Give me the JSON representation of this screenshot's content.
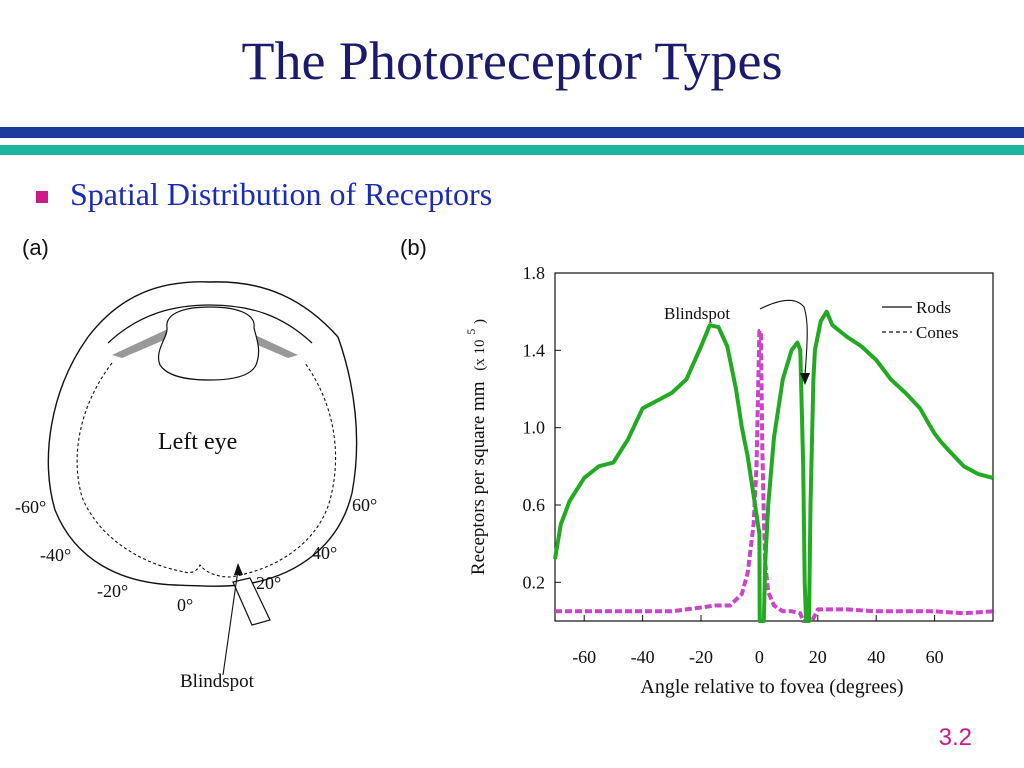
{
  "title": "The Photoreceptor Types",
  "bullet": "Spatial Distribution of Receptors",
  "page_number": "3.2",
  "colors": {
    "title": "#1a1a6e",
    "bullet_text": "#1a2bb8",
    "bullet_marker": "#cc1a8a",
    "bar_blue": "#1a3a9c",
    "bar_teal": "#1eb59e",
    "rods": "#22aa22",
    "cones": "#cc44cc"
  },
  "panel_a": {
    "label": "(a)",
    "eye_label": "Left eye",
    "blindspot_label": "Blindspot",
    "angle_labels": {
      "m60": "-60°",
      "m40": "-40°",
      "m20": "-20°",
      "z0": "0°",
      "p20": "20°",
      "p40": "40°",
      "p60": "60°"
    }
  },
  "panel_b": {
    "label": "(b)",
    "blindspot_label": "Blindspot"
  },
  "chart_data": {
    "type": "line",
    "title": "",
    "xlabel": "Angle relative to fovea (degrees)",
    "ylabel_main": "Receptors per square mm",
    "ylabel_unit_prefix": "(x 10",
    "ylabel_unit_exp": "5",
    "ylabel_unit_suffix": ")",
    "xlim": [
      -70,
      80
    ],
    "ylim": [
      0,
      1.8
    ],
    "x_ticks": [
      -60,
      -40,
      -20,
      0,
      20,
      40,
      60
    ],
    "x_tick_labels": [
      "-60",
      "-40",
      "-20",
      "0",
      "20",
      "40",
      "60"
    ],
    "y_ticks": [
      0.2,
      0.6,
      1.0,
      1.4,
      1.8
    ],
    "y_tick_labels": [
      "0.2",
      "0.6",
      "1.0",
      "1.4",
      "1.8"
    ],
    "legend_placement": "top-right",
    "grid": false,
    "series": [
      {
        "name": "Rods",
        "style": "solid",
        "x": [
          -70,
          -68,
          -65,
          -60,
          -55,
          -50,
          -45,
          -40,
          -35,
          -30,
          -25,
          -20,
          -17,
          -14,
          -11,
          -8,
          -6,
          -4,
          -2,
          0,
          0.1,
          1.5,
          2,
          3,
          5,
          8,
          11,
          13,
          14,
          15,
          15.5,
          16,
          16.5,
          17,
          17.5,
          18.5,
          19,
          21,
          23,
          25,
          30,
          35,
          40,
          45,
          50,
          55,
          58,
          60,
          62,
          65,
          70,
          75,
          80
        ],
        "y": [
          0.32,
          0.5,
          0.62,
          0.74,
          0.8,
          0.82,
          0.94,
          1.1,
          1.14,
          1.18,
          1.25,
          1.42,
          1.53,
          1.52,
          1.42,
          1.2,
          1.0,
          0.85,
          0.65,
          0.45,
          0.0,
          0.0,
          0.3,
          0.6,
          0.95,
          1.25,
          1.4,
          1.44,
          1.4,
          0.8,
          0.2,
          0.0,
          0.0,
          0.0,
          0.6,
          1.25,
          1.4,
          1.55,
          1.6,
          1.53,
          1.47,
          1.42,
          1.35,
          1.25,
          1.18,
          1.1,
          1.02,
          0.97,
          0.93,
          0.88,
          0.8,
          0.76,
          0.74
        ]
      },
      {
        "name": "Cones",
        "style": "dashed",
        "x": [
          -70,
          -60,
          -50,
          -40,
          -30,
          -25,
          -20,
          -15,
          -10,
          -6,
          -4,
          -2,
          -1,
          0,
          0.5,
          1,
          1.5,
          2,
          3,
          5,
          8,
          11,
          14,
          15,
          16,
          17,
          18,
          20,
          25,
          30,
          40,
          50,
          60,
          70,
          80
        ],
        "y": [
          0.05,
          0.05,
          0.05,
          0.05,
          0.05,
          0.06,
          0.07,
          0.08,
          0.08,
          0.14,
          0.25,
          0.5,
          0.8,
          1.5,
          1.5,
          0.9,
          0.55,
          0.3,
          0.15,
          0.08,
          0.05,
          0.05,
          0.04,
          0.0,
          0.0,
          0.0,
          0.0,
          0.06,
          0.06,
          0.06,
          0.05,
          0.05,
          0.05,
          0.04,
          0.05
        ]
      }
    ]
  }
}
